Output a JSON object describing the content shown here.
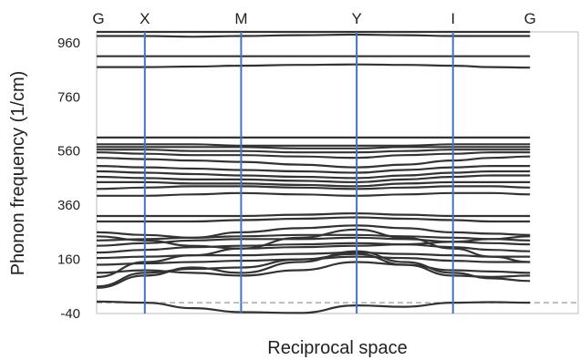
{
  "chart_data": {
    "type": "line",
    "title": "",
    "xlabel": "Reciprocal space",
    "ylabel": "Phonon frequency (1/cm)",
    "ylim": [
      -40,
      1000
    ],
    "yticks": [
      -40,
      160,
      360,
      560,
      760,
      960
    ],
    "xlim": [
      0,
      5
    ],
    "high_symmetry_points": [
      {
        "label": "G",
        "x": 0
      },
      {
        "label": "X",
        "x": 0.5
      },
      {
        "label": "M",
        "x": 1.5
      },
      {
        "label": "Y",
        "x": 2.7
      },
      {
        "label": "I",
        "x": 3.7
      },
      {
        "label": "G",
        "x": 4.5
      }
    ],
    "vertical_lines_at": [
      0.5,
      1.5,
      2.7,
      3.7
    ],
    "zero_line": 0,
    "colors": {
      "bands": "#333333",
      "kpath_lines": "#4472c4",
      "zero_line": "#aaaaaa",
      "frame": "#bbbbbb"
    },
    "band_x": [
      0,
      0.5,
      1.0,
      1.5,
      2.1,
      2.7,
      3.2,
      3.7,
      4.1,
      4.5
    ],
    "series": [
      {
        "values": [
          4,
          0,
          -20,
          -35,
          -38,
          -10,
          -15,
          0,
          2,
          0
        ]
      },
      {
        "values": [
          55,
          100,
          130,
          110,
          150,
          190,
          150,
          110,
          90,
          80
        ]
      },
      {
        "values": [
          60,
          110,
          125,
          130,
          160,
          180,
          140,
          100,
          95,
          100
        ]
      },
      {
        "values": [
          95,
          150,
          175,
          200,
          240,
          270,
          240,
          200,
          170,
          150
        ]
      },
      {
        "values": [
          110,
          120,
          110,
          100,
          120,
          150,
          140,
          120,
          115,
          110
        ]
      },
      {
        "values": [
          140,
          145,
          150,
          155,
          160,
          170,
          165,
          155,
          150,
          150
        ]
      },
      {
        "values": [
          165,
          170,
          175,
          175,
          180,
          185,
          180,
          175,
          170,
          170
        ]
      },
      {
        "values": [
          185,
          195,
          205,
          210,
          215,
          220,
          215,
          205,
          195,
          190
        ]
      },
      {
        "values": [
          210,
          220,
          230,
          235,
          235,
          240,
          235,
          225,
          220,
          215
        ]
      },
      {
        "values": [
          230,
          235,
          240,
          245,
          250,
          250,
          245,
          240,
          235,
          230
        ]
      },
      {
        "values": [
          245,
          230,
          210,
          200,
          205,
          210,
          215,
          225,
          235,
          245
        ]
      },
      {
        "values": [
          260,
          250,
          240,
          260,
          275,
          285,
          275,
          260,
          255,
          250
        ]
      },
      {
        "values": [
          300,
          300,
          300,
          305,
          310,
          315,
          310,
          305,
          300,
          300
        ]
      },
      {
        "values": [
          320,
          320,
          320,
          320,
          325,
          330,
          325,
          320,
          320,
          320
        ]
      },
      {
        "values": [
          395,
          395,
          400,
          405,
          400,
          395,
          400,
          405,
          405,
          400
        ]
      },
      {
        "values": [
          420,
          425,
          430,
          430,
          425,
          420,
          425,
          430,
          430,
          425
        ]
      },
      {
        "values": [
          445,
          445,
          440,
          440,
          435,
          430,
          440,
          445,
          445,
          445
        ]
      },
      {
        "values": [
          465,
          460,
          455,
          455,
          450,
          445,
          455,
          465,
          470,
          470
        ]
      },
      {
        "values": [
          485,
          480,
          475,
          470,
          465,
          460,
          470,
          480,
          485,
          485
        ]
      },
      {
        "values": [
          505,
          500,
          495,
          490,
          485,
          480,
          490,
          500,
          505,
          505
        ]
      },
      {
        "values": [
          535,
          530,
          525,
          520,
          510,
          500,
          510,
          525,
          535,
          540
        ]
      },
      {
        "values": [
          555,
          550,
          545,
          545,
          540,
          535,
          545,
          550,
          555,
          555
        ]
      },
      {
        "values": [
          565,
          565,
          560,
          560,
          555,
          555,
          560,
          565,
          565,
          565
        ]
      },
      {
        "values": [
          575,
          575,
          575,
          575,
          570,
          570,
          575,
          575,
          575,
          575
        ]
      },
      {
        "values": [
          585,
          585,
          585,
          580,
          580,
          580,
          580,
          585,
          585,
          585
        ]
      },
      {
        "values": [
          610,
          610,
          610,
          610,
          610,
          610,
          610,
          610,
          610,
          610
        ]
      },
      {
        "values": [
          870,
          870,
          872,
          875,
          878,
          880,
          878,
          875,
          870,
          868
        ]
      },
      {
        "values": [
          910,
          910,
          910,
          910,
          910,
          910,
          910,
          910,
          910,
          910
        ]
      },
      {
        "values": [
          985,
          985,
          982,
          985,
          988,
          990,
          988,
          985,
          985,
          985
        ]
      },
      {
        "values": [
          1000,
          1000,
          1000,
          1000,
          1000,
          1000,
          1000,
          1000,
          1000,
          1000
        ]
      }
    ]
  }
}
